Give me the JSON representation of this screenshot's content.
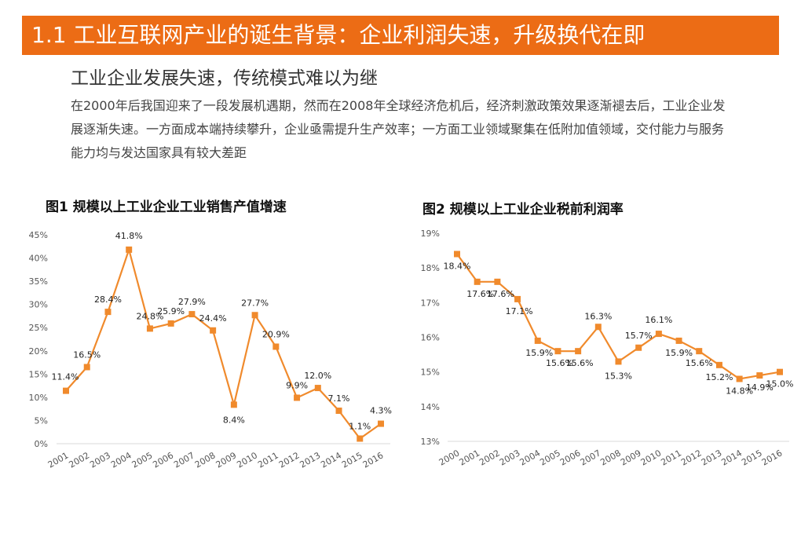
{
  "header": {
    "title": "1.1 工业互联网产业的诞生背景：企业利润失速，升级换代在即"
  },
  "subtitle": "工业企业发展失速，传统模式难以为继",
  "paragraph": "在2000年后我国迎来了一段发展机遇期，然而在2008年全球经济危机后，经济刺激政策效果逐渐褪去后，工业企业发展逐渐失速。一方面成本端持续攀升，企业亟需提升生产效率；一方面工业领域聚集在低附加值领域，交付能力与服务能力均与发达国家具有较大差距",
  "colors": {
    "accent": "#ec6c15",
    "series": "#f08a2c",
    "axis": "#d9d9d9"
  },
  "chart_data": [
    {
      "type": "line",
      "title": "图1 规模以上工业企业工业销售产值增速",
      "x": [
        "2001",
        "2002",
        "2003",
        "2004",
        "2005",
        "2006",
        "2007",
        "2008",
        "2009",
        "2010",
        "2011",
        "2012",
        "2013",
        "2014",
        "2015",
        "2016"
      ],
      "series": [
        {
          "values": [
            11.4,
            16.5,
            28.4,
            41.8,
            24.8,
            25.9,
            27.9,
            24.4,
            8.4,
            27.7,
            20.9,
            9.9,
            12.0,
            7.1,
            1.1,
            4.3
          ],
          "labels": [
            "11.4%",
            "16.5%",
            "28.4%",
            "41.8%",
            "24.8%",
            "25.9%",
            "27.9%",
            "24.4%",
            "8.4%",
            "27.7%",
            "20.9%",
            "9.9%",
            "12.0%",
            "7.1%",
            "1.1%",
            "4.3%"
          ]
        }
      ],
      "ylim": [
        0,
        45
      ],
      "yticks": [
        0,
        5,
        10,
        15,
        20,
        25,
        30,
        35,
        40,
        45
      ],
      "ytick_labels": [
        "0%",
        "5%",
        "10%",
        "15%",
        "20%",
        "25%",
        "30%",
        "35%",
        "40%",
        "45%"
      ],
      "grid": false,
      "marker": "square"
    },
    {
      "type": "line",
      "title": "图2 规模以上工业企业税前利润率",
      "x": [
        "2000",
        "2001",
        "2002",
        "2003",
        "2004",
        "2005",
        "2006",
        "2007",
        "2008",
        "2009",
        "2010",
        "2011",
        "2012",
        "2013",
        "2014",
        "2015",
        "2016"
      ],
      "series": [
        {
          "values": [
            18.4,
            17.6,
            17.6,
            17.1,
            15.9,
            15.6,
            15.6,
            16.3,
            15.3,
            15.7,
            16.1,
            15.9,
            15.6,
            15.2,
            14.8,
            14.9,
            15.0
          ],
          "labels": [
            "18.4%",
            "17.6%",
            "17.6%",
            "17.1%",
            "15.9%",
            "15.6%",
            "15.6%",
            "16.3%",
            "15.3%",
            "15.7%",
            "16.1%",
            "15.9%",
            "15.6%",
            "15.2%",
            "14.8%",
            "14.9%",
            "15.0%"
          ]
        }
      ],
      "ylim": [
        13,
        19
      ],
      "yticks": [
        13,
        14,
        15,
        16,
        17,
        18,
        19
      ],
      "ytick_labels": [
        "13%",
        "14%",
        "15%",
        "16%",
        "17%",
        "18%",
        "19%"
      ],
      "grid": false,
      "marker": "square"
    }
  ]
}
